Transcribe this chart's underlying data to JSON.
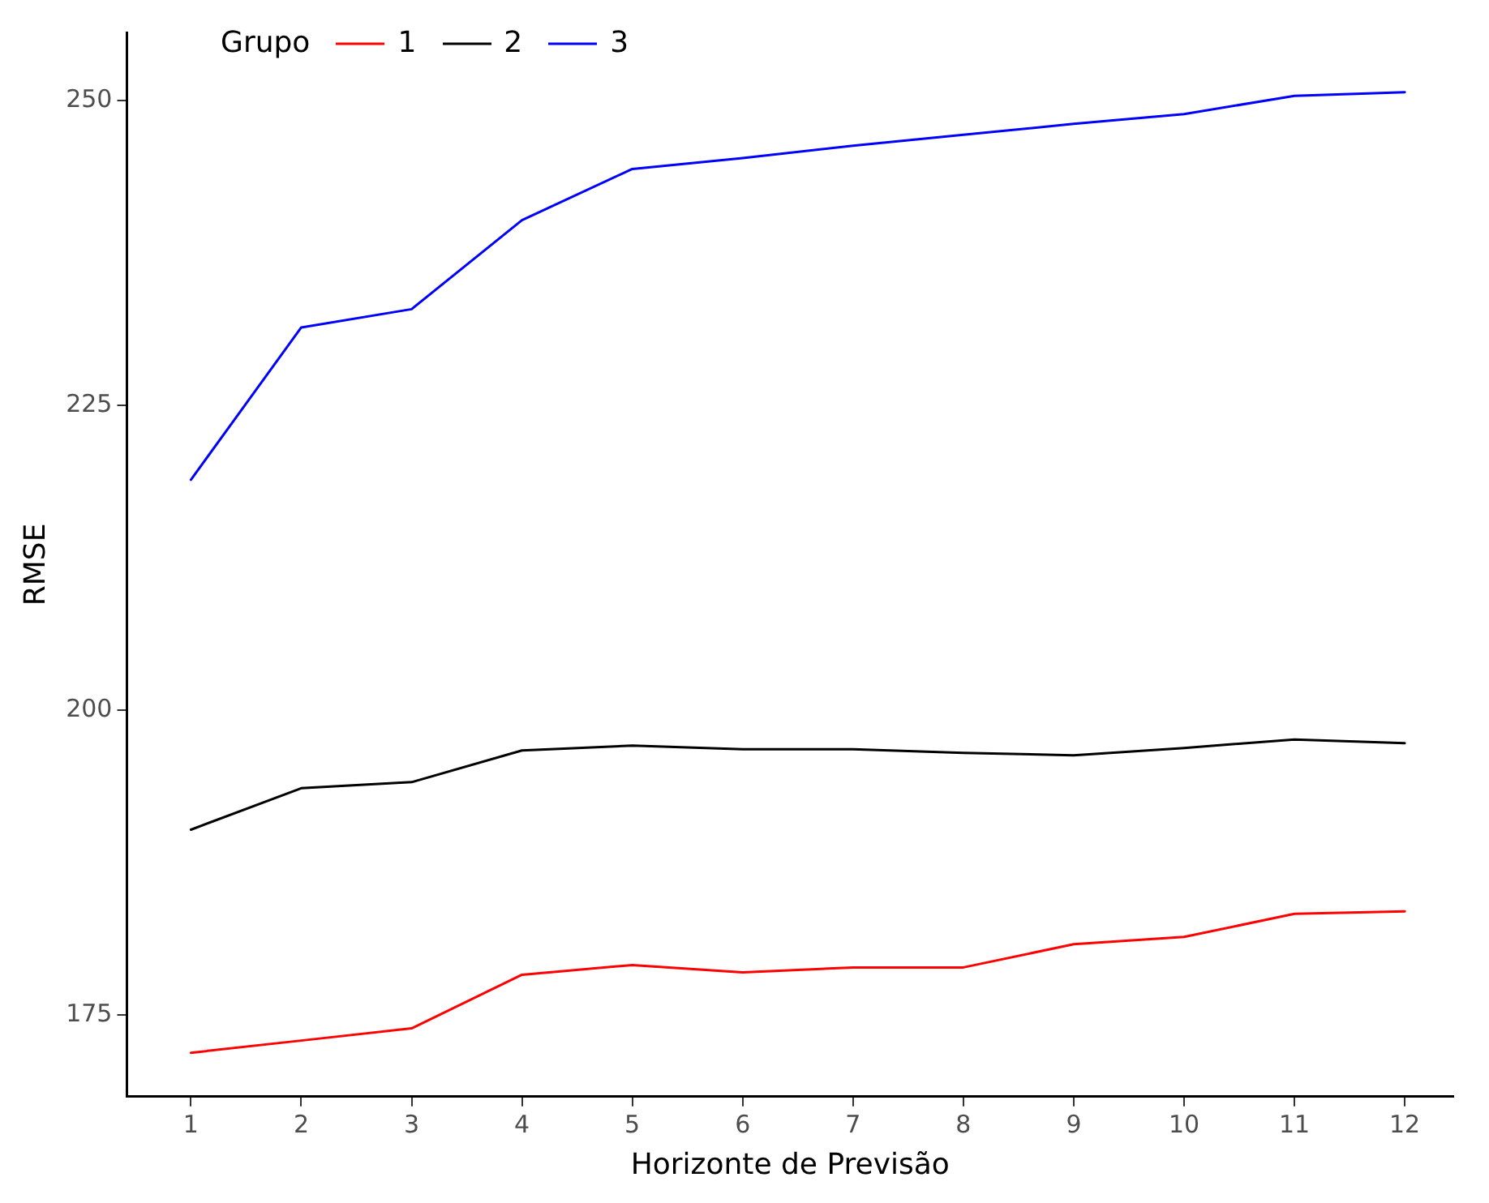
{
  "chart_data": {
    "type": "line",
    "xlabel": "Horizonte de Previsão",
    "ylabel": "RMSE",
    "legend_title": "Grupo",
    "legend": "top left",
    "grid": false,
    "marker": "none",
    "line_style": "solid",
    "x": [
      1,
      2,
      3,
      4,
      5,
      6,
      7,
      8,
      9,
      10,
      11,
      12
    ],
    "xlim": [
      0.42,
      12.44
    ],
    "xticks": [
      1,
      2,
      3,
      4,
      5,
      6,
      7,
      8,
      9,
      10,
      11,
      12
    ],
    "ylim": [
      168.3,
      255.6
    ],
    "yticks": [
      175,
      200,
      225,
      250
    ],
    "series": [
      {
        "name": "1",
        "color": "#ff0000",
        "values": [
          171.9,
          172.9,
          173.9,
          178.3,
          179.1,
          178.5,
          178.9,
          178.9,
          180.8,
          181.4,
          183.3,
          183.5
        ]
      },
      {
        "name": "2",
        "color": "#000000",
        "values": [
          190.2,
          193.6,
          194.1,
          196.7,
          197.1,
          196.8,
          196.8,
          196.5,
          196.3,
          196.9,
          197.6,
          197.3
        ]
      },
      {
        "name": "3",
        "color": "#0000ff",
        "values": [
          218.9,
          231.4,
          232.9,
          240.2,
          244.4,
          245.3,
          246.3,
          247.2,
          248.1,
          248.9,
          250.4,
          250.7
        ]
      }
    ]
  }
}
